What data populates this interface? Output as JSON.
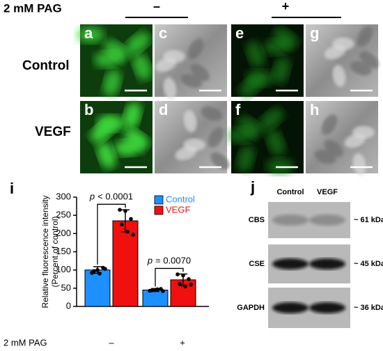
{
  "header": {
    "treatment": "2 mM PAG",
    "minus": "–",
    "plus": "+"
  },
  "rows": [
    "Control",
    "VEGF"
  ],
  "panels": [
    "a",
    "c",
    "e",
    "g",
    "b",
    "d",
    "f",
    "h"
  ],
  "chart_data": {
    "type": "bar",
    "panel_label": "i",
    "y_label": [
      "Relative fluorescence intensity",
      "(Percent of control)"
    ],
    "x_label": "2 mM PAG",
    "categories": [
      "–",
      "+"
    ],
    "series": [
      {
        "name": "Control",
        "color": "#1e8fff",
        "values": [
          100,
          45
        ],
        "errors": [
          9,
          4
        ],
        "points": [
          [
            92,
            100,
            106,
            97,
            90,
            103
          ],
          [
            43,
            45,
            48,
            44,
            47,
            42
          ]
        ]
      },
      {
        "name": "VEGF",
        "color": "#f01010",
        "values": [
          235,
          73
        ],
        "errors": [
          30,
          16
        ],
        "points": [
          [
            265,
            262,
            240,
            225,
            205,
            197
          ],
          [
            88,
            85,
            75,
            62,
            55,
            60
          ]
        ]
      }
    ],
    "ylim": [
      0,
      300
    ],
    "yticks": [
      0,
      50,
      100,
      150,
      200,
      250,
      300
    ],
    "annotations": [
      {
        "symbol": "p",
        "text": "< 0.0001"
      },
      {
        "symbol": "p",
        "text": "= 0.0070"
      }
    ]
  },
  "blot": {
    "panel_label": "j",
    "lanes": [
      "Control",
      "VEGF"
    ],
    "bands": [
      {
        "name": "CBS",
        "size": "~ 61 kDa"
      },
      {
        "name": "CSE",
        "size": "~ 45 kDa"
      },
      {
        "name": "GAPDH",
        "size": "~ 36 kDa"
      }
    ]
  }
}
